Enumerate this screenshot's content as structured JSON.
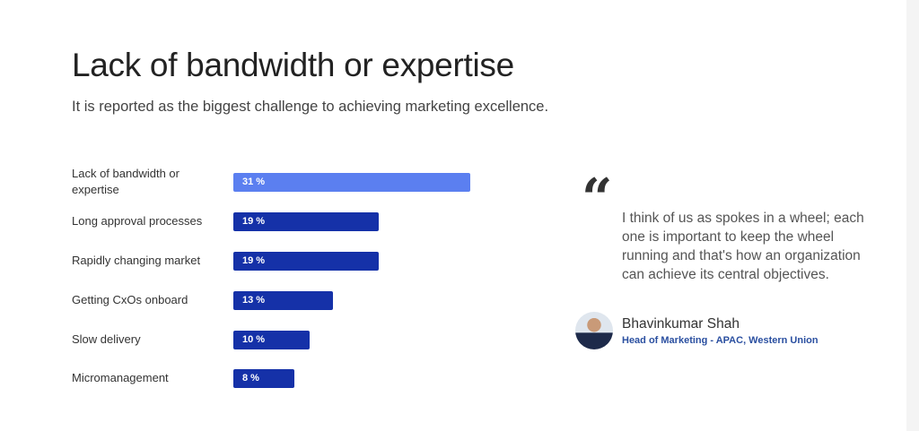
{
  "header": {
    "title": "Lack of bandwidth or expertise",
    "subtitle": "It is reported as the biggest challenge to achieving marketing excellence."
  },
  "chart_data": {
    "type": "bar",
    "orientation": "horizontal",
    "categories": [
      "Lack of bandwidth or expertise",
      "Long approval processes",
      "Rapidly changing market",
      "Getting CxOs onboard",
      "Slow delivery",
      "Micromanagement"
    ],
    "values": [
      31,
      19,
      19,
      13,
      10,
      8
    ],
    "value_labels": [
      "31 %",
      "19 %",
      "19 %",
      "13 %",
      "10 %",
      "8 %"
    ],
    "unit": "%",
    "highlight_color": "#5b7ff0",
    "bar_color": "#1531a8",
    "xlim": [
      0,
      31
    ]
  },
  "quote": {
    "icon": "quote-icon",
    "text": "I think of us as spokes in a wheel; each one is important to keep the wheel running and that's how an organization can achieve its central objectives.",
    "name": "Bhavinkumar Shah",
    "role": "Head of Marketing - APAC, Western Union"
  }
}
